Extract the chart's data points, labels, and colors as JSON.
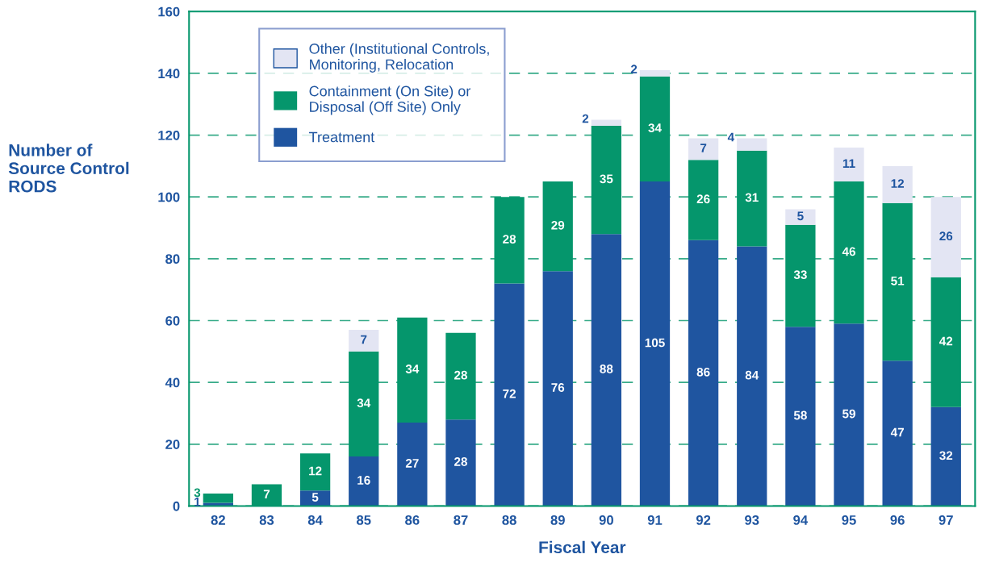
{
  "chart_data": {
    "type": "bar",
    "stacked": true,
    "xlabel": "Fiscal Year",
    "ylabel": "Number of\nSource Control\nRODS",
    "categories": [
      "82",
      "83",
      "84",
      "85",
      "86",
      "87",
      "88",
      "89",
      "90",
      "91",
      "92",
      "93",
      "94",
      "95",
      "96",
      "97"
    ],
    "series": [
      {
        "name": "Treatment",
        "color": "#1f55a0",
        "values": [
          1,
          null,
          5,
          16,
          27,
          28,
          72,
          76,
          88,
          105,
          86,
          84,
          58,
          59,
          47,
          32
        ]
      },
      {
        "name": "Containment (On Site) or\nDisposal (Off Site) Only",
        "color": "#05966c",
        "values": [
          3,
          7,
          12,
          34,
          34,
          28,
          28,
          29,
          35,
          34,
          26,
          31,
          33,
          46,
          51,
          42
        ]
      },
      {
        "name": "Other (Institutional Controls,\nMonitoring, Relocation",
        "color": "#e3e5f3",
        "values": [
          null,
          null,
          null,
          7,
          null,
          null,
          null,
          null,
          2,
          2,
          7,
          4,
          5,
          11,
          12,
          26
        ]
      }
    ],
    "data_labels": true,
    "ylim": [
      0,
      160
    ],
    "yticks": [
      0,
      20,
      40,
      60,
      80,
      100,
      120,
      140,
      160
    ],
    "grid": "y",
    "legend": "top left"
  }
}
